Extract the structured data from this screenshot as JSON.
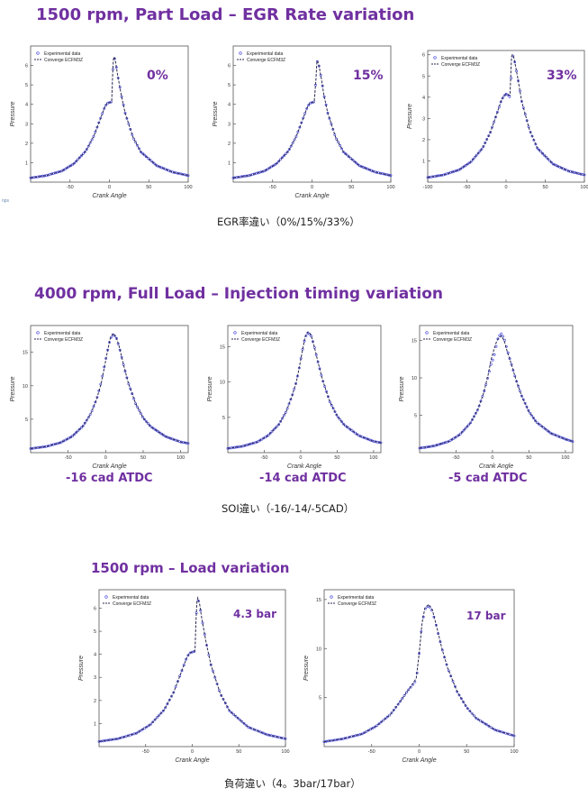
{
  "headings": {
    "section1": "1500 rpm, Part Load – EGR Rate variation",
    "section2": "4000 rpm, Full Load – Injection timing variation",
    "section3": "1500 rpm – Load variation"
  },
  "captions": {
    "section1": "EGR率違い（0%/15%/33%）",
    "section2": "SOI違い（-16/-14/-5CAD）",
    "section3": "負荷違い（4。3bar/17bar）"
  },
  "edge_mark": "nps",
  "chart_data": [
    {
      "type": "line",
      "id": "egr-0",
      "tag": "0%",
      "xlabel": "Crank Angle",
      "ylabel": "Pressure",
      "xlim": [
        -100,
        100
      ],
      "ylim": [
        0,
        7
      ],
      "xticks": [
        -50,
        0,
        50,
        100
      ],
      "yticks": [
        1,
        2,
        3,
        4,
        5,
        6
      ],
      "legend_position": "top-left",
      "series": [
        {
          "name": "Experimental data",
          "style": "circles",
          "color": "#3a3ad8",
          "x": [
            -100,
            -80,
            -60,
            -45,
            -30,
            -20,
            -12,
            -6,
            -3,
            0,
            2,
            3,
            4,
            5,
            6,
            8,
            10,
            15,
            20,
            30,
            40,
            60,
            80,
            100
          ],
          "y": [
            0.22,
            0.34,
            0.58,
            0.95,
            1.6,
            2.35,
            3.2,
            3.85,
            4.05,
            4.1,
            4.1,
            4.2,
            5.4,
            6.3,
            6.45,
            6.15,
            5.6,
            4.5,
            3.55,
            2.3,
            1.55,
            0.85,
            0.52,
            0.34
          ]
        },
        {
          "name": "Converge ECFM3Z",
          "style": "dashed",
          "color": "#2a2a50",
          "x": [
            -100,
            -80,
            -60,
            -45,
            -30,
            -20,
            -12,
            -6,
            -3,
            0,
            2,
            3,
            4,
            5,
            6,
            8,
            10,
            15,
            20,
            30,
            40,
            60,
            80,
            100
          ],
          "y": [
            0.22,
            0.34,
            0.58,
            0.95,
            1.6,
            2.35,
            3.2,
            3.85,
            4.05,
            4.1,
            4.1,
            4.2,
            5.4,
            6.3,
            6.45,
            6.15,
            5.6,
            4.5,
            3.55,
            2.3,
            1.55,
            0.85,
            0.52,
            0.34
          ]
        }
      ]
    },
    {
      "type": "line",
      "id": "egr-15",
      "tag": "15%",
      "xlabel": "Crank Angle",
      "ylabel": "Pressure",
      "xlim": [
        -100,
        100
      ],
      "ylim": [
        0,
        7
      ],
      "xticks": [
        -50,
        0,
        50,
        100
      ],
      "yticks": [
        1,
        2,
        3,
        4,
        5,
        6
      ],
      "legend_position": "top-left",
      "series": [
        {
          "name": "Experimental data",
          "style": "circles",
          "color": "#3a3ad8",
          "x": [
            -100,
            -80,
            -60,
            -45,
            -30,
            -20,
            -12,
            -6,
            -3,
            0,
            2,
            3,
            5,
            6,
            7,
            9,
            12,
            15,
            20,
            30,
            40,
            60,
            80,
            100
          ],
          "y": [
            0.22,
            0.34,
            0.58,
            0.95,
            1.6,
            2.35,
            3.2,
            3.85,
            4.05,
            4.1,
            4.1,
            4.2,
            5.3,
            6.1,
            6.25,
            5.95,
            5.3,
            4.5,
            3.55,
            2.3,
            1.55,
            0.85,
            0.52,
            0.34
          ]
        },
        {
          "name": "Converge ECFM3Z",
          "style": "dashed",
          "color": "#2a2a50",
          "x": [
            -100,
            -80,
            -60,
            -45,
            -30,
            -20,
            -12,
            -6,
            -3,
            0,
            2,
            3,
            5,
            6,
            7,
            9,
            12,
            15,
            20,
            30,
            40,
            60,
            80,
            100
          ],
          "y": [
            0.22,
            0.34,
            0.58,
            0.95,
            1.6,
            2.35,
            3.2,
            3.85,
            4.05,
            4.1,
            4.1,
            4.2,
            5.3,
            6.1,
            6.25,
            5.95,
            5.3,
            4.5,
            3.55,
            2.3,
            1.55,
            0.85,
            0.52,
            0.34
          ]
        }
      ]
    },
    {
      "type": "line",
      "id": "egr-33",
      "tag": "33%",
      "xlabel": "",
      "ylabel": "Pressure",
      "xlim": [
        -100,
        100
      ],
      "ylim": [
        0,
        6.2
      ],
      "xticks": [
        -100,
        -50,
        0,
        50,
        100
      ],
      "yticks": [
        1,
        2,
        3,
        4,
        5,
        6
      ],
      "legend_position": "top-left",
      "series": [
        {
          "name": "Experimental data",
          "style": "circles",
          "color": "#3a3ad8",
          "x": [
            -100,
            -80,
            -60,
            -45,
            -30,
            -20,
            -12,
            -6,
            -3,
            0,
            3,
            5,
            6,
            7,
            8,
            9,
            10,
            12,
            15,
            20,
            30,
            40,
            60,
            80,
            100
          ],
          "y": [
            0.22,
            0.34,
            0.58,
            0.95,
            1.6,
            2.35,
            3.2,
            3.85,
            4.05,
            4.15,
            4.1,
            4.0,
            4.3,
            5.2,
            5.85,
            5.95,
            5.85,
            5.5,
            4.9,
            3.8,
            2.45,
            1.6,
            0.85,
            0.52,
            0.34
          ]
        },
        {
          "name": "Converge ECFM3Z",
          "style": "dashed",
          "color": "#2a2a50",
          "x": [
            -100,
            -80,
            -60,
            -45,
            -30,
            -20,
            -12,
            -6,
            -3,
            0,
            3,
            5,
            6,
            7,
            8,
            9,
            10,
            12,
            15,
            20,
            30,
            40,
            60,
            80,
            100
          ],
          "y": [
            0.22,
            0.34,
            0.58,
            0.95,
            1.6,
            2.35,
            3.2,
            3.85,
            4.05,
            4.15,
            4.1,
            4.1,
            5.0,
            5.9,
            6.0,
            5.95,
            5.85,
            5.5,
            4.9,
            3.8,
            2.45,
            1.6,
            0.85,
            0.52,
            0.34
          ]
        }
      ]
    },
    {
      "type": "line",
      "id": "soi-16",
      "tag": "-16 cad ATDC",
      "xlabel": "Crank Angle",
      "ylabel": "Pressure",
      "xlim": [
        -100,
        110
      ],
      "ylim": [
        0,
        19
      ],
      "xticks": [
        -50,
        0,
        50,
        100
      ],
      "yticks": [
        5,
        10,
        15
      ],
      "legend_position": "top-left",
      "series": [
        {
          "name": "Experimental data",
          "style": "circles",
          "color": "#3a3ad8",
          "x": [
            -100,
            -80,
            -60,
            -45,
            -30,
            -20,
            -12,
            -6,
            -2,
            2,
            6,
            10,
            14,
            18,
            24,
            30,
            40,
            50,
            60,
            80,
            100,
            110
          ],
          "y": [
            0.6,
            0.9,
            1.5,
            2.4,
            4.0,
            5.8,
            8.0,
            10.5,
            12.8,
            15.0,
            17.0,
            17.7,
            17.2,
            15.8,
            13.0,
            10.5,
            7.3,
            5.2,
            3.9,
            2.4,
            1.6,
            1.4
          ]
        },
        {
          "name": "Converge ECFM3Z",
          "style": "dashed",
          "color": "#2a2a50",
          "x": [
            -100,
            -80,
            -60,
            -45,
            -30,
            -20,
            -12,
            -6,
            -2,
            2,
            6,
            10,
            14,
            18,
            24,
            30,
            40,
            50,
            60,
            80,
            100,
            110
          ],
          "y": [
            0.6,
            0.9,
            1.5,
            2.4,
            4.0,
            5.8,
            8.0,
            10.3,
            12.6,
            14.9,
            17.0,
            17.8,
            17.3,
            15.9,
            13.1,
            10.5,
            7.3,
            5.2,
            3.9,
            2.4,
            1.6,
            1.4
          ]
        }
      ]
    },
    {
      "type": "line",
      "id": "soi-14",
      "tag": "-14 cad ATDC",
      "xlabel": "Crank Angle",
      "ylabel": "Pressure",
      "xlim": [
        -100,
        110
      ],
      "ylim": [
        0,
        18
      ],
      "xticks": [
        -50,
        0,
        50,
        100
      ],
      "yticks": [
        5,
        10,
        15
      ],
      "legend_position": "top-left",
      "series": [
        {
          "name": "Experimental data",
          "style": "circles",
          "color": "#3a3ad8",
          "x": [
            -100,
            -80,
            -60,
            -45,
            -30,
            -20,
            -12,
            -6,
            -2,
            2,
            6,
            10,
            14,
            18,
            24,
            30,
            40,
            50,
            60,
            80,
            100,
            110
          ],
          "y": [
            0.6,
            0.9,
            1.5,
            2.4,
            4.0,
            5.8,
            8.0,
            10.0,
            12.0,
            14.3,
            16.3,
            17.0,
            16.6,
            15.3,
            12.7,
            10.3,
            7.2,
            5.2,
            3.9,
            2.4,
            1.6,
            1.4
          ]
        },
        {
          "name": "Converge ECFM3Z",
          "style": "dashed",
          "color": "#2a2a50",
          "x": [
            -100,
            -80,
            -60,
            -45,
            -30,
            -20,
            -12,
            -6,
            -2,
            2,
            6,
            10,
            14,
            18,
            24,
            30,
            40,
            50,
            60,
            80,
            100,
            110
          ],
          "y": [
            0.6,
            0.9,
            1.5,
            2.4,
            4.0,
            5.8,
            8.0,
            10.0,
            12.0,
            14.3,
            16.4,
            17.1,
            16.7,
            15.3,
            12.7,
            10.3,
            7.2,
            5.2,
            3.9,
            2.4,
            1.6,
            1.4
          ]
        }
      ]
    },
    {
      "type": "line",
      "id": "soi-5",
      "tag": "-5 cad ATDC",
      "xlabel": "Crank Angle",
      "ylabel": "Pressure",
      "xlim": [
        -100,
        110
      ],
      "ylim": [
        0,
        17
      ],
      "xticks": [
        -50,
        0,
        50,
        100
      ],
      "yticks": [
        5,
        10,
        15
      ],
      "legend_position": "top-left",
      "series": [
        {
          "name": "Experimental data",
          "style": "circles",
          "color": "#3a3ad8",
          "x": [
            -100,
            -80,
            -60,
            -45,
            -30,
            -20,
            -12,
            -6,
            -2,
            2,
            5,
            8,
            12,
            16,
            20,
            26,
            32,
            40,
            50,
            60,
            80,
            100,
            110
          ],
          "y": [
            0.6,
            0.9,
            1.5,
            2.4,
            4.0,
            5.8,
            8.0,
            10.2,
            11.8,
            12.8,
            14.2,
            15.5,
            15.9,
            15.3,
            13.8,
            11.8,
            9.8,
            7.6,
            5.5,
            4.1,
            2.6,
            1.8,
            1.5
          ]
        },
        {
          "name": "Converge ECFM3Z",
          "style": "dashed",
          "color": "#2a2a50",
          "x": [
            -100,
            -80,
            -60,
            -45,
            -30,
            -20,
            -12,
            -6,
            -2,
            2,
            5,
            8,
            12,
            16,
            20,
            26,
            32,
            40,
            50,
            60,
            80,
            100,
            110
          ],
          "y": [
            0.6,
            0.9,
            1.5,
            2.4,
            4.0,
            5.8,
            8.0,
            10.4,
            12.4,
            13.8,
            14.7,
            15.3,
            15.6,
            15.0,
            13.6,
            11.8,
            9.8,
            7.6,
            5.5,
            4.1,
            2.6,
            1.8,
            1.5
          ]
        }
      ]
    },
    {
      "type": "line",
      "id": "load-4-3",
      "tag": "4.3 bar",
      "xlabel": "Crank Angle",
      "ylabel": "Pressure",
      "xlim": [
        -100,
        100
      ],
      "ylim": [
        0,
        6.8
      ],
      "xticks": [
        -50,
        0,
        50,
        100
      ],
      "yticks": [
        1,
        2,
        3,
        4,
        5,
        6
      ],
      "legend_position": "top-left",
      "series": [
        {
          "name": "Experimental data",
          "style": "circles",
          "color": "#3a3ad8",
          "x": [
            -100,
            -80,
            -60,
            -45,
            -30,
            -20,
            -12,
            -6,
            -3,
            0,
            2,
            3,
            4,
            5,
            6,
            8,
            10,
            15,
            20,
            30,
            40,
            60,
            80,
            100
          ],
          "y": [
            0.22,
            0.34,
            0.58,
            0.95,
            1.6,
            2.35,
            3.2,
            3.85,
            4.05,
            4.1,
            4.1,
            4.2,
            5.4,
            6.3,
            6.4,
            6.15,
            5.6,
            4.5,
            3.55,
            2.3,
            1.55,
            0.85,
            0.52,
            0.34
          ]
        },
        {
          "name": "Converge ECFM3Z",
          "style": "dashed",
          "color": "#2a2a50",
          "x": [
            -100,
            -80,
            -60,
            -45,
            -30,
            -20,
            -12,
            -6,
            -3,
            0,
            2,
            3,
            4,
            5,
            6,
            8,
            10,
            15,
            20,
            30,
            40,
            60,
            80,
            100
          ],
          "y": [
            0.22,
            0.34,
            0.58,
            0.95,
            1.6,
            2.35,
            3.2,
            3.85,
            4.05,
            4.1,
            4.1,
            4.2,
            5.4,
            6.3,
            6.45,
            6.15,
            5.6,
            4.5,
            3.55,
            2.3,
            1.55,
            0.85,
            0.52,
            0.34
          ]
        }
      ]
    },
    {
      "type": "line",
      "id": "load-17",
      "tag": "17 bar",
      "xlabel": "Crank Angle",
      "ylabel": "Pressure",
      "xlim": [
        -100,
        100
      ],
      "ylim": [
        0,
        16
      ],
      "xticks": [
        -50,
        0,
        50,
        100
      ],
      "yticks": [
        5,
        10,
        15
      ],
      "legend_position": "top-left",
      "series": [
        {
          "name": "Experimental data",
          "style": "circles",
          "color": "#3a3ad8",
          "x": [
            -100,
            -80,
            -60,
            -45,
            -30,
            -20,
            -12,
            -6,
            -3,
            0,
            3,
            6,
            10,
            14,
            18,
            24,
            30,
            40,
            50,
            60,
            80,
            100
          ],
          "y": [
            0.5,
            0.8,
            1.3,
            2.1,
            3.3,
            4.6,
            5.7,
            6.4,
            6.8,
            9.5,
            12.5,
            14.0,
            14.4,
            13.8,
            12.3,
            10.0,
            8.0,
            5.6,
            4.0,
            2.9,
            1.7,
            1.1
          ]
        },
        {
          "name": "Converge ECFM3Z",
          "style": "dashed",
          "color": "#2a2a50",
          "x": [
            -100,
            -80,
            -60,
            -45,
            -30,
            -20,
            -12,
            -6,
            -3,
            0,
            3,
            6,
            10,
            14,
            18,
            24,
            30,
            40,
            50,
            60,
            80,
            100
          ],
          "y": [
            0.5,
            0.8,
            1.3,
            2.1,
            3.3,
            4.6,
            5.7,
            6.5,
            7.0,
            9.5,
            12.6,
            14.1,
            14.5,
            13.9,
            12.4,
            10.0,
            8.0,
            5.6,
            4.0,
            2.9,
            1.7,
            1.1
          ]
        }
      ]
    }
  ]
}
